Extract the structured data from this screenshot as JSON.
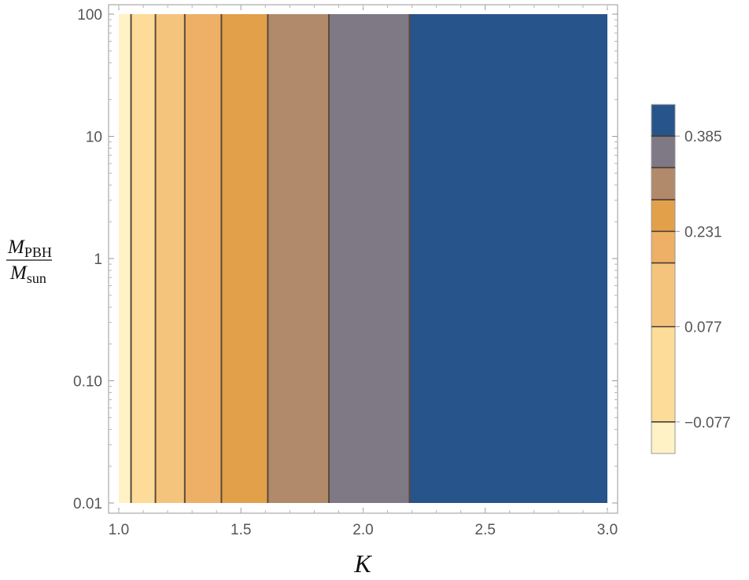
{
  "chart_data": {
    "type": "contour",
    "xlabel": "K",
    "ylabel": {
      "numerator_main": "M",
      "numerator_sub": "PBH",
      "denominator_main": "M",
      "denominator_sub": "sun"
    },
    "xlim": [
      1.0,
      3.0
    ],
    "ylim": [
      0.01,
      100
    ],
    "y_scale": "log",
    "x_ticks": [
      "1.0",
      "1.5",
      "2.0",
      "2.5",
      "3.0"
    ],
    "x_tick_values": [
      1.0,
      1.5,
      2.0,
      2.5,
      3.0
    ],
    "y_ticks": [
      "0.01",
      "0.10",
      "1",
      "10",
      "100"
    ],
    "y_tick_values": [
      0.01,
      0.1,
      1,
      10,
      100
    ],
    "contour_boundaries_k": [
      1.05,
      1.15,
      1.27,
      1.42,
      1.61,
      1.86,
      2.19
    ],
    "bands": [
      {
        "color": "#fff2c4"
      },
      {
        "color": "#fddb98"
      },
      {
        "color": "#f5c47c"
      },
      {
        "color": "#edb066"
      },
      {
        "color": "#e3a04a"
      },
      {
        "color": "#b08a6a"
      },
      {
        "color": "#7f7885"
      },
      {
        "color": "#27548a"
      }
    ],
    "contour_line_color": "#5a4a3a",
    "legend": {
      "placement": "right",
      "labels": [
        "0.385",
        "0.231",
        "0.077",
        "−0.077"
      ],
      "label_values": [
        0.385,
        0.231,
        0.077,
        -0.077
      ],
      "level_values": [
        0.436,
        0.385,
        0.334,
        0.282,
        0.231,
        0.18,
        0.128,
        0.077,
        0.026,
        -0.026,
        -0.077,
        -0.128
      ]
    }
  }
}
